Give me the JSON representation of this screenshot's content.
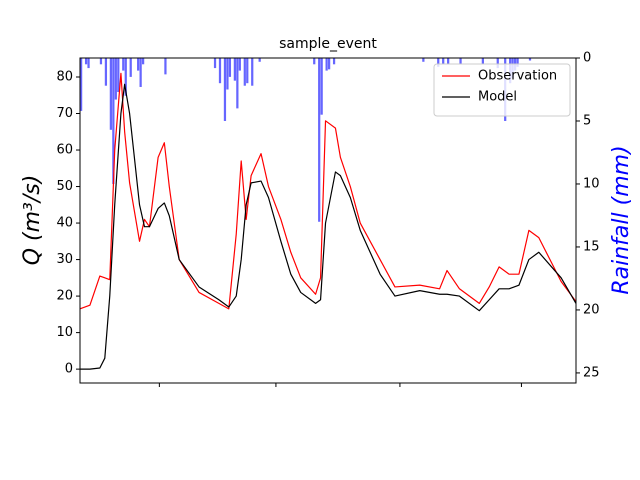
{
  "chart_data": {
    "type": "line",
    "title": "sample_event",
    "y_label": "Q (m³/s)",
    "y2_label": "Rainfall (mm)",
    "y2_label_color": "#0000ff",
    "x": [
      0,
      4,
      8,
      10,
      12,
      14,
      16.5,
      18,
      20,
      24,
      26,
      28,
      31.5,
      34,
      36,
      40,
      48,
      56,
      60,
      63,
      65,
      67,
      69,
      73,
      76,
      81,
      85,
      89,
      95,
      97,
      99,
      103,
      105,
      109,
      113,
      121,
      127,
      137,
      145,
      148,
      153,
      161,
      165,
      169,
      173,
      177,
      181,
      185,
      194,
      200
    ],
    "xlim": [
      0,
      200
    ],
    "xticks": [
      32,
      79,
      129,
      178
    ],
    "ylim": [
      -3.8,
      85.2
    ],
    "yticks": [
      0,
      10,
      20,
      30,
      40,
      50,
      60,
      70,
      80
    ],
    "y2lim": [
      25.8,
      0
    ],
    "y2ticks": [
      0,
      5,
      10,
      15,
      20,
      25
    ],
    "legend": "upper right",
    "series": [
      {
        "name": "Observation",
        "type": "line",
        "color": "#ff0000",
        "values": [
          16.5,
          17.5,
          25.5,
          25,
          24.5,
          60,
          81,
          65,
          51,
          35,
          41,
          39,
          58,
          62,
          50,
          30,
          21,
          18,
          16.5,
          37,
          57,
          41,
          53,
          59,
          50,
          41,
          32,
          25,
          20.5,
          25,
          68,
          66,
          58,
          50,
          40,
          30,
          22.5,
          23,
          22,
          27,
          22,
          18,
          22.5,
          28,
          26,
          26,
          38,
          36,
          24,
          18.5
        ]
      },
      {
        "name": "Model",
        "type": "line",
        "color": "#000000",
        "values": [
          0,
          0,
          0.3,
          3,
          20,
          45,
          70,
          78,
          70,
          45,
          39,
          39,
          44,
          45.5,
          42,
          30,
          22.5,
          19,
          17,
          20,
          30,
          45,
          51,
          51.5,
          47,
          35,
          26,
          21,
          18,
          19,
          40,
          54,
          53,
          47,
          38,
          26,
          20,
          21.5,
          20.5,
          20.5,
          20,
          16,
          19,
          22,
          22,
          23,
          30,
          32,
          25,
          18
        ]
      },
      {
        "type": "bar",
        "axis": "y2",
        "color": "#0000ff",
        "alpha": 0.6,
        "x": [
          0,
          2,
          3,
          8,
          10,
          12,
          13,
          14,
          15,
          17,
          18,
          20,
          23,
          24,
          25,
          34,
          54,
          56,
          58,
          59,
          60,
          62,
          63,
          64,
          66,
          67,
          69,
          72,
          94,
          96,
          97,
          99,
          100,
          102,
          138,
          144,
          146,
          148,
          153,
          162,
          168,
          171,
          173,
          174,
          175,
          176,
          181
        ],
        "values": [
          4.2,
          0.5,
          0.8,
          0.5,
          2.2,
          5.7,
          10,
          3.3,
          2.7,
          1,
          3,
          1.5,
          1,
          2.3,
          0.5,
          1.3,
          0.8,
          2,
          5,
          2.5,
          1.5,
          1.8,
          4,
          1,
          2.2,
          2,
          2.2,
          0.3,
          0.5,
          13,
          4.5,
          1,
          0.9,
          0.5,
          0.3,
          0.7,
          0.5,
          0.5,
          0.5,
          0.5,
          0.8,
          5,
          2,
          1.6,
          1,
          0.7,
          0.2
        ]
      }
    ]
  }
}
